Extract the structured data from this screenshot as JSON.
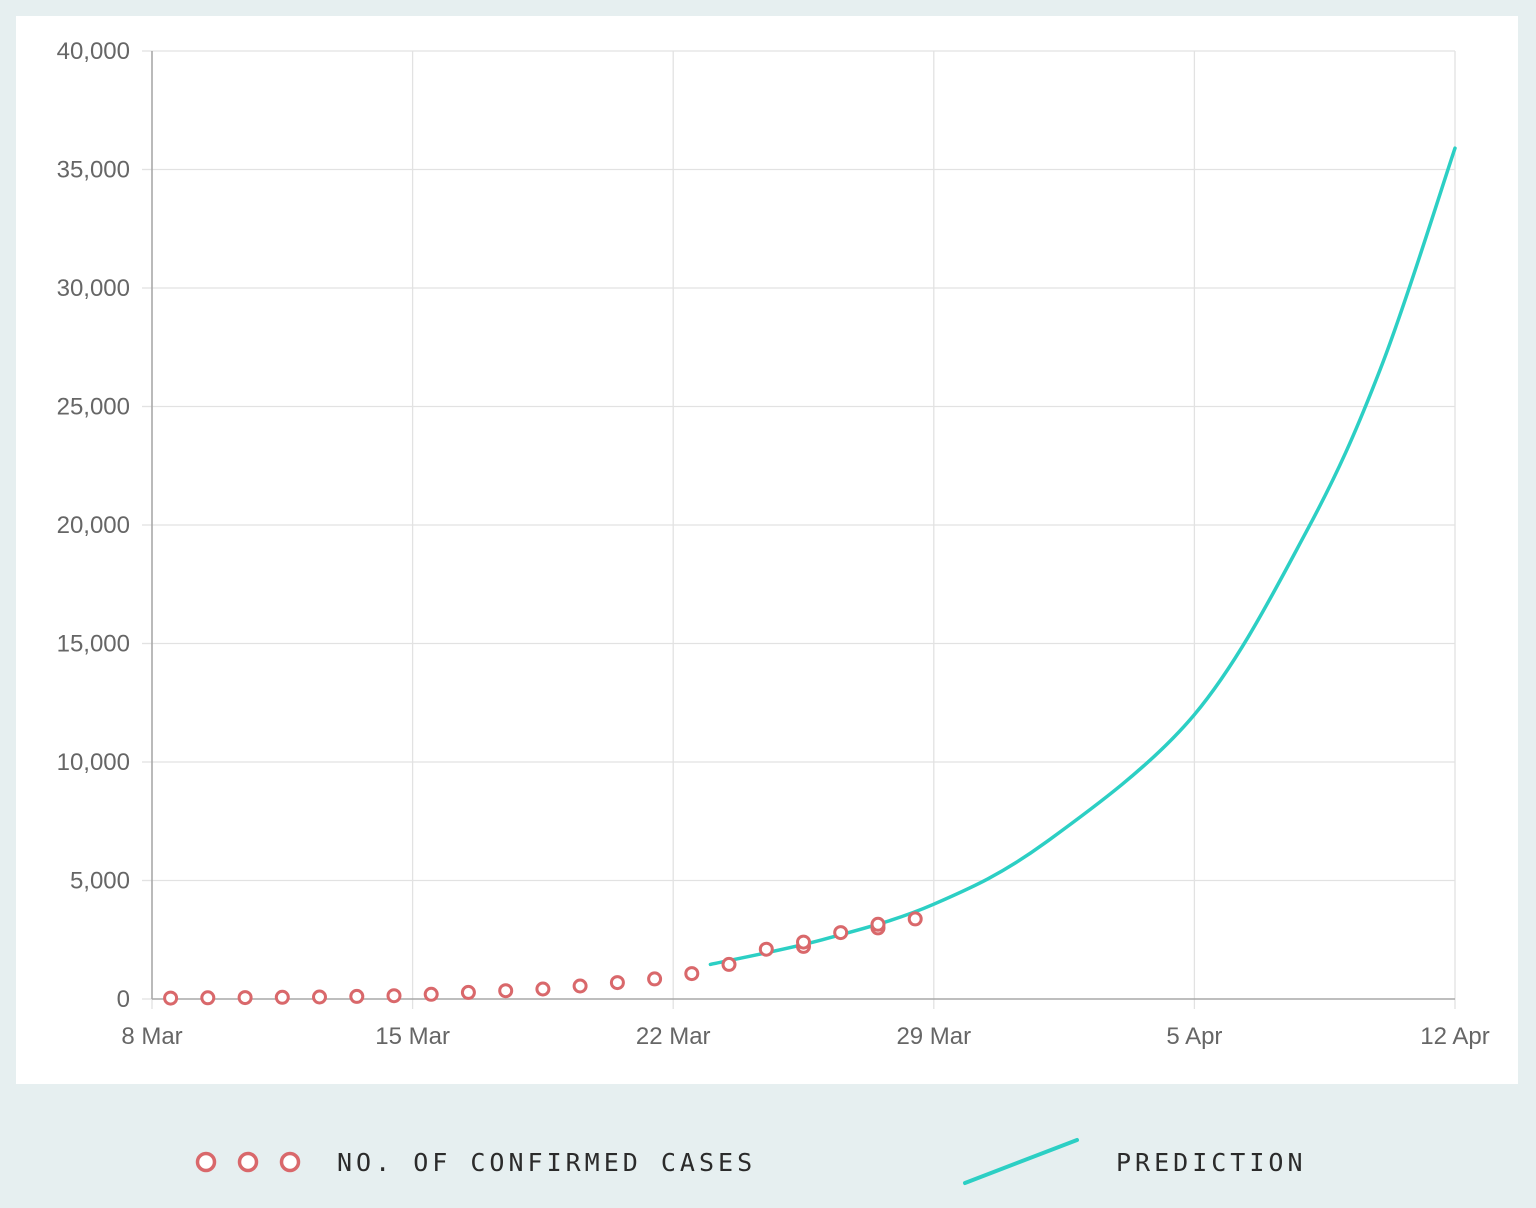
{
  "chart_data": {
    "type": "scatter",
    "title": "",
    "xlabel": "",
    "ylabel": "",
    "x_ticks": [
      "8 Mar",
      "15 Mar",
      "22 Mar",
      "29 Mar",
      "5 Apr",
      "12 Apr"
    ],
    "x_range": [
      "2020-03-08",
      "2020-04-12"
    ],
    "y_ticks": [
      "0",
      "5,000",
      "10,000",
      "15,000",
      "20,000",
      "25,000",
      "30,000",
      "35,000",
      "40,000"
    ],
    "ylim": [
      0,
      40000
    ],
    "grid": true,
    "legend_position": "bottom",
    "series": [
      {
        "name": "NO. OF CONFIRMED CASES",
        "kind": "scatter",
        "marker": "hollow circle",
        "color": "#d9686b",
        "points": [
          {
            "x": "2020-03-08",
            "y": 40
          },
          {
            "x": "2020-03-09",
            "y": 50
          },
          {
            "x": "2020-03-10",
            "y": 60
          },
          {
            "x": "2020-03-11",
            "y": 70
          },
          {
            "x": "2020-03-12",
            "y": 85
          },
          {
            "x": "2020-03-13",
            "y": 110
          },
          {
            "x": "2020-03-14",
            "y": 140
          },
          {
            "x": "2020-03-15",
            "y": 200
          },
          {
            "x": "2020-03-16",
            "y": 280
          },
          {
            "x": "2020-03-17",
            "y": 350
          },
          {
            "x": "2020-03-18",
            "y": 420
          },
          {
            "x": "2020-03-19",
            "y": 550
          },
          {
            "x": "2020-03-20",
            "y": 690
          },
          {
            "x": "2020-03-21",
            "y": 850
          },
          {
            "x": "2020-03-22",
            "y": 1070
          },
          {
            "x": "2020-03-23",
            "y": 1460
          },
          {
            "x": "2020-03-24",
            "y": 2100
          },
          {
            "x": "2020-03-25",
            "y": 2220
          },
          {
            "x": "2020-03-25",
            "y": 2400
          },
          {
            "x": "2020-03-26",
            "y": 2800
          },
          {
            "x": "2020-03-27",
            "y": 3000
          },
          {
            "x": "2020-03-27",
            "y": 3150
          },
          {
            "x": "2020-03-28",
            "y": 3380
          }
        ]
      },
      {
        "name": "PREDICTION",
        "kind": "line",
        "color": "#2ccfc4",
        "points": [
          {
            "x": "2020-03-23",
            "y": 1460
          },
          {
            "x": "2020-03-26",
            "y": 2500
          },
          {
            "x": "2020-03-29",
            "y": 4000
          },
          {
            "x": "2020-04-01",
            "y": 6600
          },
          {
            "x": "2020-04-05",
            "y": 12000
          },
          {
            "x": "2020-04-08",
            "y": 19700
          },
          {
            "x": "2020-04-10",
            "y": 26600
          },
          {
            "x": "2020-04-12",
            "y": 35900
          }
        ]
      }
    ]
  },
  "legend": {
    "confirmed_label": "NO. OF CONFIRMED CASES",
    "prediction_label": "PREDICTION"
  },
  "colors": {
    "page_background": "#e6eff0",
    "panel_background": "#ffffff",
    "grid": "#e2e2e2",
    "axis": "#a8a8a8",
    "confirmed": "#d9686b",
    "prediction": "#2ccfc4"
  }
}
